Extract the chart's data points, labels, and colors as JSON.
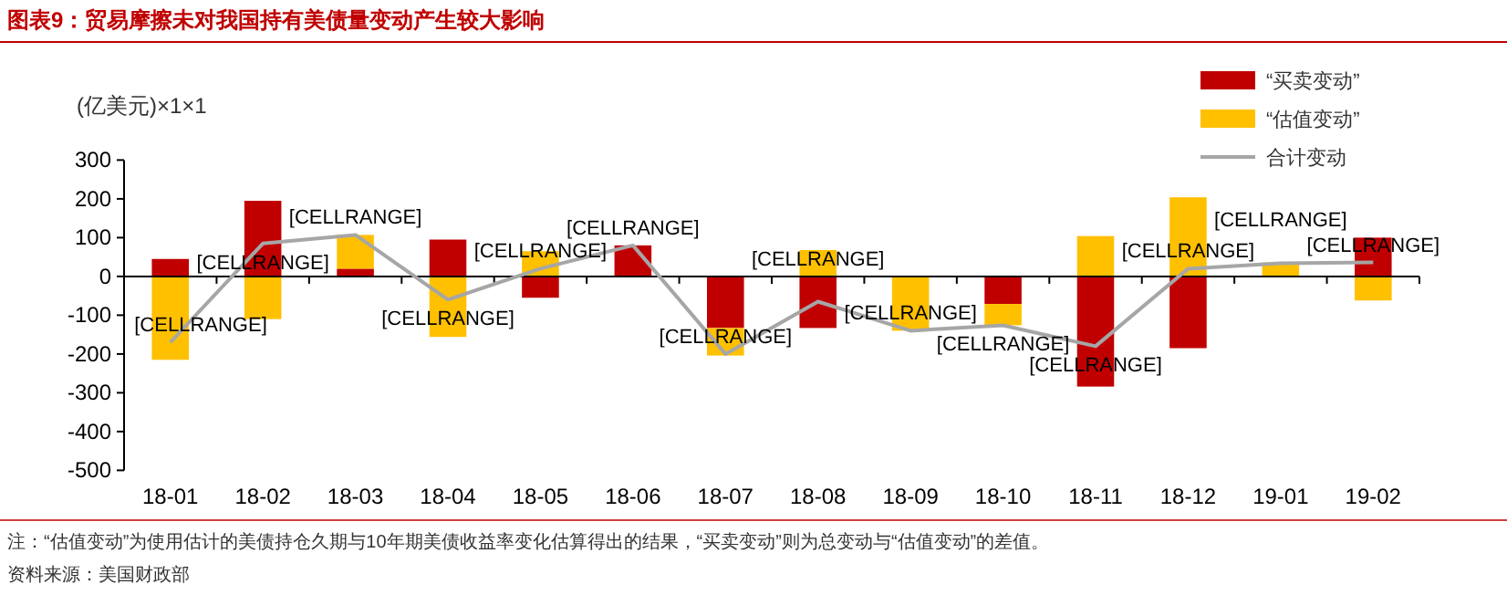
{
  "chart_data": {
    "type": "bar",
    "title": "图表9：贸易摩擦未对我国持有美债量变动产生较大影响",
    "ylabel": "(亿美元)×1×1",
    "categories": [
      "18-01",
      "18-02",
      "18-03",
      "18-04",
      "18-05",
      "18-06",
      "18-07",
      "18-08",
      "18-09",
      "18-10",
      "18-11",
      "18-12",
      "19-01",
      "19-02"
    ],
    "stacked": true,
    "ylim": [
      -500,
      300
    ],
    "yticks": [
      -500,
      -400,
      -300,
      -200,
      -100,
      0,
      100,
      200,
      300
    ],
    "legend": "top right",
    "series": [
      {
        "name": "“买卖变动”",
        "color": "#c00000",
        "values": [
          45,
          195,
          20,
          95,
          -55,
          80,
          -133,
          -133,
          0,
          -71,
          -284,
          -185,
          0,
          100
        ]
      },
      {
        "name": "“估值变动”",
        "color": "#ffc000",
        "values": [
          -215,
          -110,
          87,
          -156,
          65,
          0,
          -71,
          68,
          -140,
          -55,
          104,
          204,
          36,
          -62
        ]
      },
      {
        "name": "合计变动",
        "type": "line",
        "color": "#a6a6a6",
        "marker": "none",
        "line_style": "solid",
        "values": [
          -170,
          85,
          107,
          -60,
          20,
          80,
          -200,
          -65,
          -140,
          -126,
          -180,
          20,
          34,
          36
        ],
        "value_labels": [
          "[CELLRANGE]",
          "[CELLRANGE]",
          "[CELLRANGE]",
          "[CELLRANGE]",
          "[CELLRANGE]",
          "[CELLRANGE]",
          "[CELLRANGE]",
          "[CELLRANGE]",
          "[CELLRANGE]",
          "[CELLRANGE]",
          "[CELLRANGE]",
          "[CELLRANGE]",
          "[CELLRANGE]",
          "[CELLRANGE]"
        ]
      }
    ],
    "annotations": [
      "注：“估值变动”为使用估计的美债持仓久期与10年期美债收益率变化估算得出的结果，“买卖变动”则为总变动与“估值变动”的差值。",
      "资料来源：美国财政部"
    ]
  }
}
